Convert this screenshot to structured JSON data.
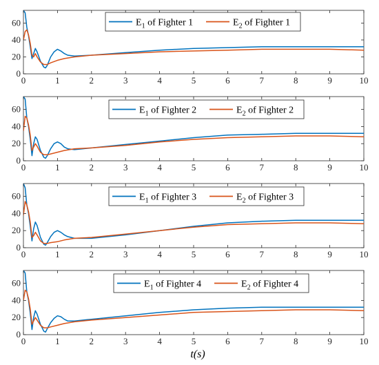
{
  "figure": {
    "xlabel": "t(s)",
    "series_colors": [
      "#0072BD",
      "#D95319"
    ]
  },
  "chart_data": [
    {
      "type": "line",
      "xlim": [
        0,
        10
      ],
      "ylim": [
        0,
        75
      ],
      "xticks": [
        0,
        1,
        2,
        3,
        4,
        5,
        6,
        7,
        8,
        9,
        10
      ],
      "yticks": [
        0,
        20,
        40,
        60
      ],
      "legend_position": "top-center",
      "grid": false,
      "series": [
        {
          "name_main": "E",
          "name_sub": "1",
          "name_rest": " of Fighter 1",
          "color": "#0072BD",
          "x": [
            0,
            0.05,
            0.1,
            0.15,
            0.2,
            0.25,
            0.3,
            0.35,
            0.4,
            0.5,
            0.6,
            0.65,
            0.7,
            0.8,
            0.9,
            1.0,
            1.1,
            1.2,
            1.3,
            1.5,
            2,
            3,
            4,
            5,
            6,
            7,
            8,
            9,
            10
          ],
          "y": [
            75,
            72,
            55,
            45,
            32,
            18,
            24,
            30,
            26,
            15,
            8,
            7,
            10,
            20,
            26,
            29,
            27,
            24,
            22,
            21,
            22,
            25,
            28,
            30,
            31,
            32,
            32,
            32,
            32
          ]
        },
        {
          "name_main": "E",
          "name_sub": "2",
          "name_rest": " of Fighter 1",
          "color": "#D95319",
          "x": [
            0,
            0.05,
            0.1,
            0.15,
            0.2,
            0.25,
            0.3,
            0.35,
            0.4,
            0.5,
            0.6,
            0.7,
            0.8,
            1.0,
            1.2,
            1.5,
            2,
            3,
            4,
            5,
            6,
            7,
            8,
            9,
            10
          ],
          "y": [
            40,
            50,
            52,
            46,
            36,
            22,
            20,
            24,
            20,
            14,
            11,
            11,
            13,
            16,
            18,
            20,
            22,
            24,
            26,
            27,
            28,
            29,
            29,
            29,
            28
          ]
        }
      ]
    },
    {
      "type": "line",
      "xlim": [
        0,
        10
      ],
      "ylim": [
        0,
        75
      ],
      "xticks": [
        0,
        1,
        2,
        3,
        4,
        5,
        6,
        7,
        8,
        9,
        10
      ],
      "yticks": [
        0,
        20,
        40,
        60
      ],
      "legend_position": "top-center",
      "grid": false,
      "series": [
        {
          "name_main": "E",
          "name_sub": "1",
          "name_rest": " of Fighter 2",
          "color": "#0072BD",
          "x": [
            0,
            0.05,
            0.1,
            0.15,
            0.2,
            0.25,
            0.3,
            0.35,
            0.4,
            0.5,
            0.6,
            0.65,
            0.7,
            0.8,
            0.9,
            1.0,
            1.1,
            1.2,
            1.3,
            1.5,
            2,
            3,
            4,
            5,
            6,
            7,
            8,
            9,
            10
          ],
          "y": [
            75,
            72,
            50,
            40,
            25,
            6,
            20,
            28,
            25,
            12,
            4,
            3,
            6,
            14,
            20,
            22,
            20,
            16,
            14,
            13,
            15,
            19,
            23,
            27,
            30,
            31,
            32,
            32,
            32
          ]
        },
        {
          "name_main": "E",
          "name_sub": "2",
          "name_rest": " of Fighter 2",
          "color": "#D95319",
          "x": [
            0,
            0.05,
            0.1,
            0.15,
            0.2,
            0.25,
            0.3,
            0.35,
            0.4,
            0.5,
            0.6,
            0.7,
            0.8,
            1.0,
            1.2,
            1.5,
            2,
            3,
            4,
            5,
            6,
            7,
            8,
            9,
            10
          ],
          "y": [
            35,
            52,
            50,
            42,
            30,
            12,
            16,
            20,
            17,
            10,
            7,
            7,
            8,
            10,
            12,
            14,
            15,
            18,
            22,
            25,
            27,
            28,
            29,
            29,
            28
          ]
        }
      ]
    },
    {
      "type": "line",
      "xlim": [
        0,
        10
      ],
      "ylim": [
        0,
        75
      ],
      "xticks": [
        0,
        1,
        2,
        3,
        4,
        5,
        6,
        7,
        8,
        9,
        10
      ],
      "yticks": [
        0,
        20,
        40,
        60
      ],
      "legend_position": "top-center",
      "grid": false,
      "series": [
        {
          "name_main": "E",
          "name_sub": "1",
          "name_rest": " of Fighter 3",
          "color": "#0072BD",
          "x": [
            0,
            0.05,
            0.1,
            0.15,
            0.2,
            0.25,
            0.3,
            0.35,
            0.4,
            0.5,
            0.6,
            0.65,
            0.7,
            0.8,
            0.9,
            1.0,
            1.1,
            1.2,
            1.3,
            1.5,
            2,
            3,
            4,
            5,
            6,
            7,
            8,
            9,
            10
          ],
          "y": [
            75,
            70,
            50,
            40,
            25,
            8,
            22,
            30,
            26,
            12,
            4,
            3,
            6,
            13,
            18,
            20,
            18,
            15,
            13,
            11,
            11,
            15,
            20,
            25,
            29,
            31,
            32,
            32,
            32
          ]
        },
        {
          "name_main": "E",
          "name_sub": "2",
          "name_rest": " of Fighter 3",
          "color": "#D95319",
          "x": [
            0,
            0.05,
            0.1,
            0.15,
            0.2,
            0.25,
            0.3,
            0.35,
            0.4,
            0.5,
            0.6,
            0.7,
            0.8,
            1.0,
            1.2,
            1.5,
            2,
            3,
            4,
            5,
            6,
            7,
            8,
            9,
            10
          ],
          "y": [
            38,
            54,
            50,
            42,
            30,
            12,
            14,
            18,
            15,
            8,
            5,
            5,
            6,
            7,
            9,
            11,
            12,
            16,
            20,
            24,
            27,
            28,
            29,
            29,
            28
          ]
        }
      ]
    },
    {
      "type": "line",
      "xlim": [
        0,
        10
      ],
      "ylim": [
        0,
        75
      ],
      "xticks": [
        0,
        1,
        2,
        3,
        4,
        5,
        6,
        7,
        8,
        9,
        10
      ],
      "yticks": [
        0,
        20,
        40,
        60
      ],
      "legend_position": "top-center",
      "grid": false,
      "series": [
        {
          "name_main": "E",
          "name_sub": "1",
          "name_rest": " of Fighter 4",
          "color": "#0072BD",
          "x": [
            0,
            0.05,
            0.1,
            0.15,
            0.2,
            0.25,
            0.3,
            0.35,
            0.4,
            0.5,
            0.6,
            0.65,
            0.7,
            0.8,
            0.9,
            1.0,
            1.1,
            1.2,
            1.3,
            1.5,
            2,
            3,
            4,
            5,
            6,
            7,
            8,
            9,
            10
          ],
          "y": [
            75,
            72,
            50,
            40,
            25,
            6,
            20,
            28,
            24,
            12,
            4,
            3,
            7,
            14,
            19,
            22,
            21,
            18,
            16,
            16,
            18,
            22,
            26,
            29,
            31,
            32,
            32,
            32,
            32
          ]
        },
        {
          "name_main": "E",
          "name_sub": "2",
          "name_rest": " of Fighter 4",
          "color": "#D95319",
          "x": [
            0,
            0.05,
            0.1,
            0.15,
            0.2,
            0.25,
            0.3,
            0.35,
            0.4,
            0.5,
            0.6,
            0.7,
            0.8,
            1.0,
            1.2,
            1.5,
            2,
            3,
            4,
            5,
            6,
            7,
            8,
            9,
            10
          ],
          "y": [
            40,
            52,
            50,
            42,
            30,
            12,
            16,
            20,
            17,
            11,
            8,
            8,
            9,
            11,
            13,
            15,
            17,
            20,
            23,
            26,
            27,
            28,
            29,
            29,
            28
          ]
        }
      ]
    }
  ]
}
